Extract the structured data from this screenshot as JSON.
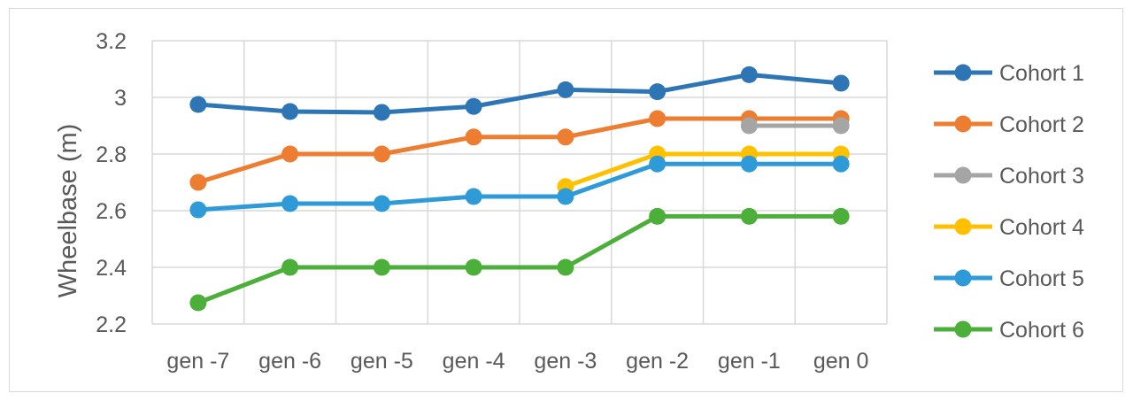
{
  "chart_data": {
    "type": "line",
    "title": "",
    "xlabel": "",
    "ylabel": "Wheelbase (m)",
    "categories": [
      "gen -7",
      "gen -6",
      "gen -5",
      "gen -4",
      "gen -3",
      "gen -2",
      "gen -1",
      "gen 0"
    ],
    "ylim": [
      2.2,
      3.2
    ],
    "yticks": [
      "2.2",
      "2.4",
      "2.6",
      "2.8",
      "3",
      "3.2"
    ],
    "grid": true,
    "legend_position": "right",
    "series": [
      {
        "name": "Cohort 1",
        "color": "#2e75b6",
        "values": [
          2.975,
          2.95,
          2.947,
          2.968,
          3.027,
          3.02,
          3.08,
          3.05
        ]
      },
      {
        "name": "Cohort 2",
        "color": "#ed7d31",
        "values": [
          2.7,
          2.8,
          2.8,
          2.86,
          2.86,
          2.925,
          2.925,
          2.925
        ]
      },
      {
        "name": "Cohort 3",
        "color": "#a5a5a5",
        "values": [
          null,
          null,
          null,
          null,
          null,
          null,
          2.9,
          2.9
        ]
      },
      {
        "name": "Cohort 4",
        "color": "#ffc000",
        "values": [
          null,
          null,
          null,
          null,
          2.685,
          2.8,
          2.8,
          2.8
        ]
      },
      {
        "name": "Cohort 5",
        "color": "#2e9bd8",
        "values": [
          2.603,
          2.625,
          2.625,
          2.65,
          2.65,
          2.765,
          2.765,
          2.765
        ]
      },
      {
        "name": "Cohort 6",
        "color": "#4caf3a",
        "values": [
          2.275,
          2.4,
          2.4,
          2.4,
          2.4,
          2.58,
          2.58,
          2.58
        ]
      }
    ]
  }
}
